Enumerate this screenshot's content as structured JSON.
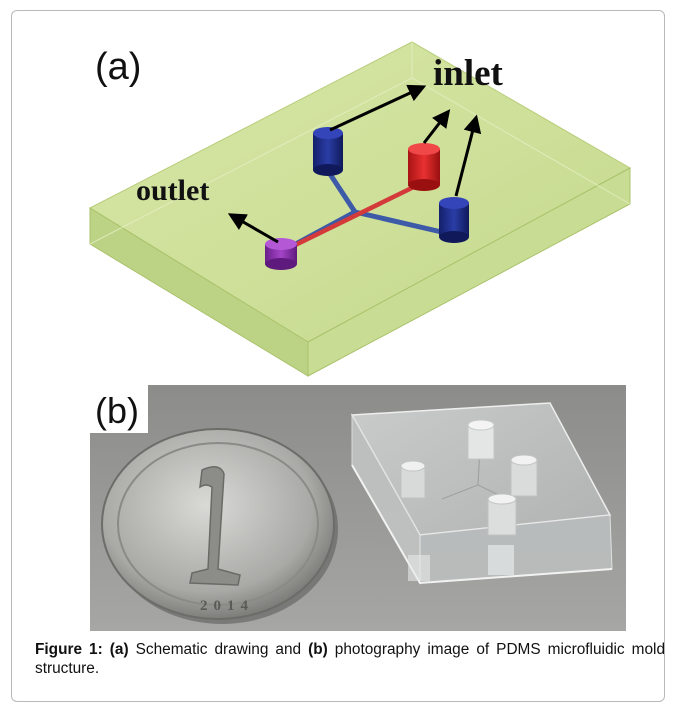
{
  "figure": {
    "panel_a": {
      "label": "(a)",
      "inlet_label": "inlet",
      "outlet_label": "outlet",
      "colors": {
        "slab": "#cfe09a",
        "inlet_ports": "#1f2f8f",
        "inlet_port_center": "#d62020",
        "outlet_port": "#8b2fb0",
        "channel_blue": "#3c5aa8",
        "channel_red": "#d43a3a"
      }
    },
    "panel_b": {
      "label": "(b)",
      "coin_text": "2014"
    },
    "caption": {
      "figure_label": "Figure 1:",
      "part_a": "(a)",
      "text_1": "Schematic drawing and",
      "part_b": "(b)",
      "text_2": "photography image of PDMS microfluidic mold structure."
    }
  }
}
